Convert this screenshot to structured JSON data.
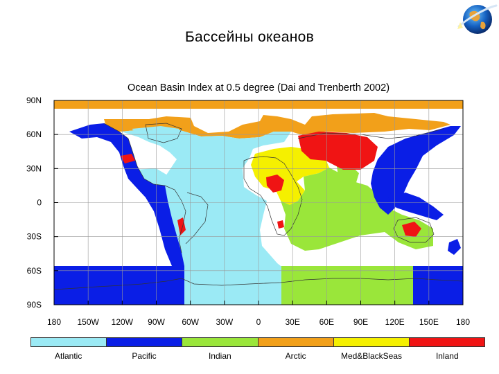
{
  "slide": {
    "title": "Бассейны океанов"
  },
  "logo": {
    "icon": "globe-icon"
  },
  "map": {
    "title": "Ocean Basin Index at 0.5 degree (Dai and Trenberth 2002)",
    "lat_ticks": [
      "90N",
      "60N",
      "30N",
      "0",
      "30S",
      "60S",
      "90S"
    ],
    "lon_ticks": [
      "180",
      "150W",
      "120W",
      "90W",
      "60W",
      "30W",
      "0",
      "30E",
      "60E",
      "90E",
      "120E",
      "150E",
      "180"
    ],
    "lat_range": [
      -90,
      90
    ],
    "lon_range": [
      -180,
      180
    ],
    "grid": true
  },
  "legend": {
    "items": [
      {
        "label": "Atlantic",
        "color": "#9BEAF5"
      },
      {
        "label": "Pacific",
        "color": "#0A1EE6"
      },
      {
        "label": "Indian",
        "color": "#9AE63A"
      },
      {
        "label": "Arctic",
        "color": "#F2A01A"
      },
      {
        "label": "Med&BlackSeas",
        "color": "#F5F000"
      },
      {
        "label": "Inland",
        "color": "#F01414"
      }
    ]
  },
  "southern_ocean_bands": [
    {
      "basin": "Pacific",
      "lon_from": -180,
      "lon_to": -67
    },
    {
      "basin": "Atlantic",
      "lon_from": -67,
      "lon_to": 20
    },
    {
      "basin": "Indian",
      "lon_from": 20,
      "lon_to": 147
    },
    {
      "basin": "Pacific",
      "lon_from": 147,
      "lon_to": 180
    }
  ]
}
